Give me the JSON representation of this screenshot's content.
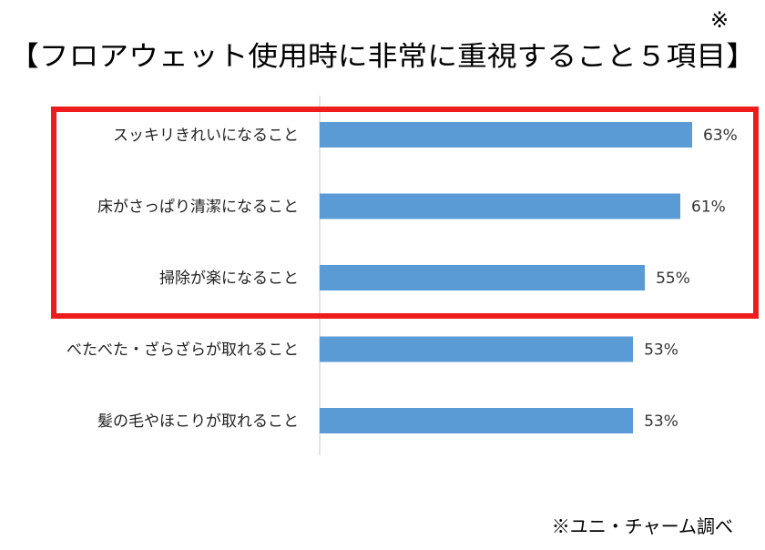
{
  "header": {
    "note_mark": "※",
    "title": "【フロアウェット使用時に非常に重視すること５項目】"
  },
  "footer": {
    "source": "※ユニ・チャーム調べ"
  },
  "colors": {
    "bar": "#5b9bd5",
    "highlight": "#ee1c1c",
    "axis": "#d0d0d0"
  },
  "chart_data": {
    "type": "bar",
    "orientation": "horizontal",
    "categories": [
      "スッキリきれいになること",
      "床がさっぱり清潔になること",
      "掃除が楽になること",
      "べたべた・ざらざらが取れること",
      "髪の毛やほこりが取れること"
    ],
    "values": [
      63,
      61,
      55,
      53,
      53
    ],
    "data_labels": [
      "63%",
      "61%",
      "55%",
      "53%",
      "53%"
    ],
    "unit": "%",
    "xlim": [
      0,
      63
    ],
    "grid": false,
    "legend": "none",
    "highlight_categories": [
      0,
      1,
      2
    ]
  }
}
